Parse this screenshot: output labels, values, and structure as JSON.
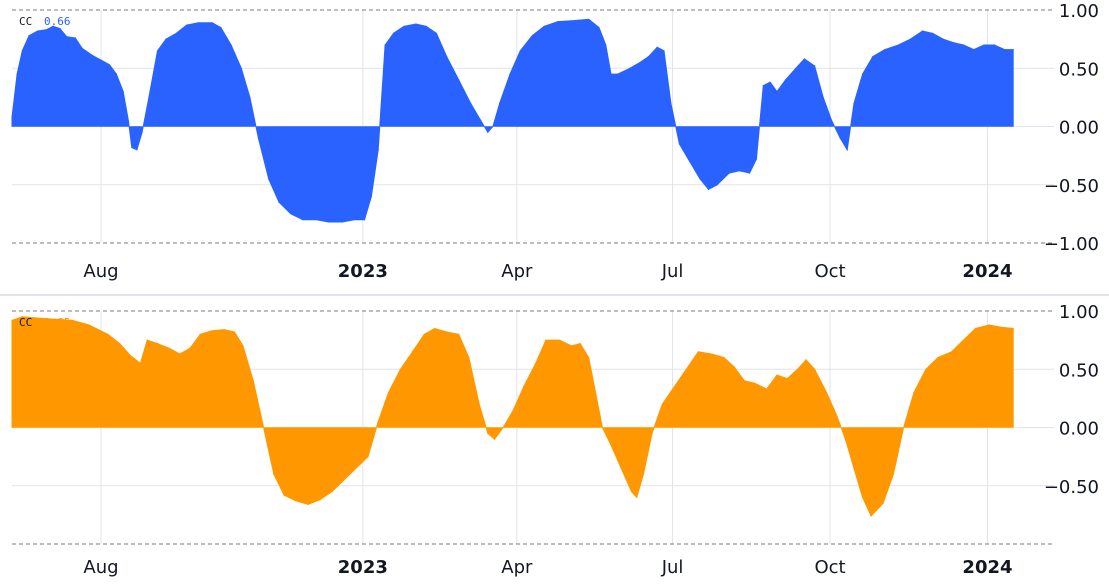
{
  "colors": {
    "background": "#ffffff",
    "grid": "#e0e3eb",
    "dashed_line": "#787b86",
    "axis_text": "#131722"
  },
  "chart_data": [
    {
      "type": "area",
      "legend": {
        "label": "CC",
        "value": "0.66"
      },
      "color": "#2962ff",
      "ylim": [
        -1.0,
        1.0
      ],
      "y_ticks": [
        "1.00",
        "0.50",
        "0.00",
        "−0.50",
        "−1.00"
      ],
      "y_tick_values": [
        1.0,
        0.5,
        0.0,
        -0.5,
        -1.0
      ],
      "x_ticks": [
        {
          "label": "Aug",
          "major": false
        },
        {
          "label": "2023",
          "major": true
        },
        {
          "label": "Apr",
          "major": false
        },
        {
          "label": "Jul",
          "major": false
        },
        {
          "label": "Oct",
          "major": false
        },
        {
          "label": "2024",
          "major": true
        }
      ],
      "x_tick_dates": [
        "2022-08-01",
        "2023-01-01",
        "2023-04-01",
        "2023-07-01",
        "2023-10-01",
        "2024-01-01"
      ],
      "x_range": [
        "2022-06-10",
        "2024-01-20"
      ],
      "series": [
        {
          "values": [
            [
              "2022-06-10",
              0.08
            ],
            [
              "2022-06-13",
              0.45
            ],
            [
              "2022-06-16",
              0.65
            ],
            [
              "2022-06-20",
              0.78
            ],
            [
              "2022-06-25",
              0.82
            ],
            [
              "2022-06-30",
              0.83
            ],
            [
              "2022-07-04",
              0.86
            ],
            [
              "2022-07-08",
              0.84
            ],
            [
              "2022-07-12",
              0.77
            ],
            [
              "2022-07-17",
              0.76
            ],
            [
              "2022-07-21",
              0.67
            ],
            [
              "2022-07-27",
              0.61
            ],
            [
              "2022-08-01",
              0.57
            ],
            [
              "2022-08-06",
              0.53
            ],
            [
              "2022-08-10",
              0.45
            ],
            [
              "2022-08-14",
              0.3
            ],
            [
              "2022-08-17",
              0.05
            ],
            [
              "2022-08-19",
              -0.18
            ],
            [
              "2022-08-22",
              -0.2
            ],
            [
              "2022-08-25",
              -0.05
            ],
            [
              "2022-08-29",
              0.25
            ],
            [
              "2022-09-03",
              0.65
            ],
            [
              "2022-09-08",
              0.75
            ],
            [
              "2022-09-14",
              0.8
            ],
            [
              "2022-09-20",
              0.87
            ],
            [
              "2022-09-27",
              0.89
            ],
            [
              "2022-10-05",
              0.89
            ],
            [
              "2022-10-10",
              0.85
            ],
            [
              "2022-10-16",
              0.7
            ],
            [
              "2022-10-22",
              0.5
            ],
            [
              "2022-10-27",
              0.25
            ],
            [
              "2022-11-01",
              -0.1
            ],
            [
              "2022-11-07",
              -0.45
            ],
            [
              "2022-11-13",
              -0.65
            ],
            [
              "2022-11-20",
              -0.75
            ],
            [
              "2022-11-27",
              -0.8
            ],
            [
              "2022-12-05",
              -0.8
            ],
            [
              "2022-12-12",
              -0.82
            ],
            [
              "2022-12-20",
              -0.82
            ],
            [
              "2022-12-27",
              -0.8
            ],
            [
              "2023-01-02",
              -0.8
            ],
            [
              "2023-01-06",
              -0.6
            ],
            [
              "2023-01-10",
              -0.2
            ],
            [
              "2023-01-14",
              0.7
            ],
            [
              "2023-01-19",
              0.8
            ],
            [
              "2023-01-25",
              0.86
            ],
            [
              "2023-02-01",
              0.88
            ],
            [
              "2023-02-07",
              0.86
            ],
            [
              "2023-02-13",
              0.8
            ],
            [
              "2023-02-19",
              0.6
            ],
            [
              "2023-02-26",
              0.4
            ],
            [
              "2023-03-05",
              0.2
            ],
            [
              "2023-03-11",
              0.05
            ],
            [
              "2023-03-15",
              -0.05
            ],
            [
              "2023-03-18",
              0.0
            ],
            [
              "2023-03-22",
              0.2
            ],
            [
              "2023-03-28",
              0.45
            ],
            [
              "2023-04-03",
              0.65
            ],
            [
              "2023-04-10",
              0.78
            ],
            [
              "2023-04-17",
              0.86
            ],
            [
              "2023-04-25",
              0.9
            ],
            [
              "2023-05-05",
              0.91
            ],
            [
              "2023-05-13",
              0.92
            ],
            [
              "2023-05-19",
              0.85
            ],
            [
              "2023-05-23",
              0.7
            ],
            [
              "2023-05-26",
              0.45
            ],
            [
              "2023-05-30",
              0.45
            ],
            [
              "2023-06-06",
              0.5
            ],
            [
              "2023-06-12",
              0.55
            ],
            [
              "2023-06-17",
              0.6
            ],
            [
              "2023-06-22",
              0.68
            ],
            [
              "2023-06-26",
              0.65
            ],
            [
              "2023-06-30",
              0.2
            ],
            [
              "2023-07-05",
              -0.15
            ],
            [
              "2023-07-11",
              -0.3
            ],
            [
              "2023-07-17",
              -0.45
            ],
            [
              "2023-07-22",
              -0.54
            ],
            [
              "2023-07-27",
              -0.5
            ],
            [
              "2023-08-03",
              -0.4
            ],
            [
              "2023-08-09",
              -0.38
            ],
            [
              "2023-08-15",
              -0.4
            ],
            [
              "2023-08-19",
              -0.28
            ],
            [
              "2023-08-23",
              0.35
            ],
            [
              "2023-08-27",
              0.38
            ],
            [
              "2023-08-31",
              0.3
            ],
            [
              "2023-09-05",
              0.4
            ],
            [
              "2023-09-11",
              0.5
            ],
            [
              "2023-09-16",
              0.58
            ],
            [
              "2023-09-22",
              0.52
            ],
            [
              "2023-09-27",
              0.25
            ],
            [
              "2023-10-02",
              0.05
            ],
            [
              "2023-10-07",
              -0.1
            ],
            [
              "2023-10-11",
              -0.2
            ],
            [
              "2023-10-15",
              0.2
            ],
            [
              "2023-10-20",
              0.45
            ],
            [
              "2023-10-26",
              0.6
            ],
            [
              "2023-11-02",
              0.66
            ],
            [
              "2023-11-10",
              0.7
            ],
            [
              "2023-11-17",
              0.75
            ],
            [
              "2023-11-24",
              0.82
            ],
            [
              "2023-11-30",
              0.8
            ],
            [
              "2023-12-06",
              0.75
            ],
            [
              "2023-12-12",
              0.72
            ],
            [
              "2023-12-18",
              0.7
            ],
            [
              "2023-12-24",
              0.66
            ],
            [
              "2023-12-30",
              0.7
            ],
            [
              "2024-01-05",
              0.7
            ],
            [
              "2024-01-11",
              0.66
            ],
            [
              "2024-01-16",
              0.66
            ]
          ]
        }
      ]
    },
    {
      "type": "area",
      "legend": {
        "label": "CC",
        "value": "0.85"
      },
      "color": "#ff9800",
      "ylim": [
        -1.0,
        1.0
      ],
      "y_ticks": [
        "1.00",
        "0.50",
        "0.00",
        "−0.50"
      ],
      "y_tick_values": [
        1.0,
        0.5,
        0.0,
        -0.5
      ],
      "x_ticks": [
        {
          "label": "Aug",
          "major": false
        },
        {
          "label": "2023",
          "major": true
        },
        {
          "label": "Apr",
          "major": false
        },
        {
          "label": "Jul",
          "major": false
        },
        {
          "label": "Oct",
          "major": false
        },
        {
          "label": "2024",
          "major": true
        }
      ],
      "x_tick_dates": [
        "2022-08-01",
        "2023-01-01",
        "2023-04-01",
        "2023-07-01",
        "2023-10-01",
        "2024-01-01"
      ],
      "x_range": [
        "2022-06-10",
        "2024-01-20"
      ],
      "series": [
        {
          "values": [
            [
              "2022-06-10",
              0.92
            ],
            [
              "2022-06-16",
              0.95
            ],
            [
              "2022-06-25",
              0.94
            ],
            [
              "2022-07-05",
              0.93
            ],
            [
              "2022-07-15",
              0.92
            ],
            [
              "2022-07-25",
              0.88
            ],
            [
              "2022-08-05",
              0.8
            ],
            [
              "2022-08-12",
              0.72
            ],
            [
              "2022-08-18",
              0.62
            ],
            [
              "2022-08-24",
              0.55
            ],
            [
              "2022-08-28",
              0.75
            ],
            [
              "2022-09-03",
              0.72
            ],
            [
              "2022-09-10",
              0.68
            ],
            [
              "2022-09-16",
              0.63
            ],
            [
              "2022-09-22",
              0.68
            ],
            [
              "2022-09-28",
              0.8
            ],
            [
              "2022-10-05",
              0.83
            ],
            [
              "2022-10-12",
              0.84
            ],
            [
              "2022-10-18",
              0.82
            ],
            [
              "2022-10-23",
              0.7
            ],
            [
              "2022-10-29",
              0.4
            ],
            [
              "2022-11-04",
              0.0
            ],
            [
              "2022-11-10",
              -0.4
            ],
            [
              "2022-11-16",
              -0.58
            ],
            [
              "2022-11-23",
              -0.63
            ],
            [
              "2022-11-30",
              -0.66
            ],
            [
              "2022-12-07",
              -0.62
            ],
            [
              "2022-12-14",
              -0.55
            ],
            [
              "2022-12-21",
              -0.45
            ],
            [
              "2022-12-28",
              -0.35
            ],
            [
              "2023-01-04",
              -0.25
            ],
            [
              "2023-01-10",
              0.05
            ],
            [
              "2023-01-16",
              0.3
            ],
            [
              "2023-01-23",
              0.5
            ],
            [
              "2023-01-30",
              0.65
            ],
            [
              "2023-02-06",
              0.8
            ],
            [
              "2023-02-12",
              0.85
            ],
            [
              "2023-02-19",
              0.82
            ],
            [
              "2023-02-26",
              0.8
            ],
            [
              "2023-03-04",
              0.6
            ],
            [
              "2023-03-10",
              0.2
            ],
            [
              "2023-03-15",
              -0.05
            ],
            [
              "2023-03-19",
              -0.1
            ],
            [
              "2023-03-24",
              0.0
            ],
            [
              "2023-03-30",
              0.15
            ],
            [
              "2023-04-05",
              0.35
            ],
            [
              "2023-04-12",
              0.55
            ],
            [
              "2023-04-18",
              0.75
            ],
            [
              "2023-04-26",
              0.75
            ],
            [
              "2023-05-03",
              0.7
            ],
            [
              "2023-05-08",
              0.72
            ],
            [
              "2023-05-13",
              0.6
            ],
            [
              "2023-05-17",
              0.3
            ],
            [
              "2023-05-21",
              0.0
            ],
            [
              "2023-05-26",
              -0.15
            ],
            [
              "2023-06-01",
              -0.35
            ],
            [
              "2023-06-07",
              -0.55
            ],
            [
              "2023-06-10",
              -0.6
            ],
            [
              "2023-06-14",
              -0.4
            ],
            [
              "2023-06-19",
              -0.05
            ],
            [
              "2023-06-25",
              0.2
            ],
            [
              "2023-07-02",
              0.35
            ],
            [
              "2023-07-09",
              0.5
            ],
            [
              "2023-07-16",
              0.65
            ],
            [
              "2023-07-24",
              0.63
            ],
            [
              "2023-07-31",
              0.6
            ],
            [
              "2023-08-06",
              0.52
            ],
            [
              "2023-08-12",
              0.4
            ],
            [
              "2023-08-18",
              0.38
            ],
            [
              "2023-08-25",
              0.33
            ],
            [
              "2023-08-31",
              0.45
            ],
            [
              "2023-09-06",
              0.42
            ],
            [
              "2023-09-12",
              0.5
            ],
            [
              "2023-09-17",
              0.58
            ],
            [
              "2023-09-22",
              0.5
            ],
            [
              "2023-09-29",
              0.3
            ],
            [
              "2023-10-05",
              0.1
            ],
            [
              "2023-10-10",
              -0.1
            ],
            [
              "2023-10-15",
              -0.35
            ],
            [
              "2023-10-20",
              -0.6
            ],
            [
              "2023-10-25",
              -0.76
            ],
            [
              "2023-11-01",
              -0.65
            ],
            [
              "2023-11-07",
              -0.4
            ],
            [
              "2023-11-13",
              0.0
            ],
            [
              "2023-11-19",
              0.3
            ],
            [
              "2023-11-26",
              0.5
            ],
            [
              "2023-12-03",
              0.6
            ],
            [
              "2023-12-11",
              0.65
            ],
            [
              "2023-12-18",
              0.75
            ],
            [
              "2023-12-25",
              0.85
            ],
            [
              "2024-01-02",
              0.88
            ],
            [
              "2024-01-09",
              0.86
            ],
            [
              "2024-01-16",
              0.85
            ]
          ]
        }
      ]
    }
  ]
}
